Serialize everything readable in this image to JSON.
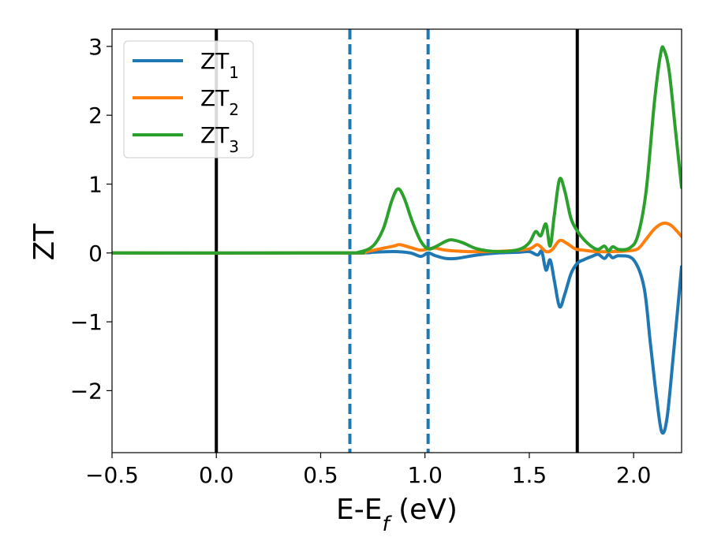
{
  "chart_data": {
    "type": "line",
    "xlabel": {
      "main": "E-E",
      "sub": "f",
      "tail": " (eV)"
    },
    "ylabel": "ZT",
    "xlim": [
      -0.5,
      2.23
    ],
    "ylim": [
      -2.9,
      3.25
    ],
    "xticks": [
      -0.5,
      0.0,
      0.5,
      1.0,
      1.5,
      2.0
    ],
    "xtick_labels": [
      "−0.5",
      "0.0",
      "0.5",
      "1.0",
      "1.5",
      "2.0"
    ],
    "yticks": [
      -2,
      -1,
      0,
      1,
      2,
      3
    ],
    "ytick_labels": [
      "−2",
      "−1",
      "0",
      "1",
      "2",
      "3"
    ],
    "grid": false,
    "legend_position": "top-left",
    "vlines": [
      {
        "x": 0.0,
        "color": "#000000",
        "style": "solid"
      },
      {
        "x": 0.64,
        "color": "#1f77b4",
        "style": "dashed"
      },
      {
        "x": 1.015,
        "color": "#1f77b4",
        "style": "dashed"
      },
      {
        "x": 1.73,
        "color": "#000000",
        "style": "solid"
      }
    ],
    "series": [
      {
        "name": "ZT",
        "sub": "1",
        "color": "#1f77b4",
        "points": [
          [
            -0.5,
            0
          ],
          [
            0.6,
            0
          ],
          [
            0.75,
            0.01
          ],
          [
            0.85,
            0.02
          ],
          [
            0.93,
            0.0
          ],
          [
            0.98,
            -0.05
          ],
          [
            1.015,
            0.0
          ],
          [
            1.05,
            -0.04
          ],
          [
            1.1,
            -0.08
          ],
          [
            1.15,
            -0.08
          ],
          [
            1.25,
            -0.03
          ],
          [
            1.35,
            0.0
          ],
          [
            1.45,
            0.01
          ],
          [
            1.5,
            0.02
          ],
          [
            1.54,
            -0.03
          ],
          [
            1.56,
            0.02
          ],
          [
            1.58,
            -0.25
          ],
          [
            1.6,
            -0.1
          ],
          [
            1.62,
            -0.4
          ],
          [
            1.645,
            -0.78
          ],
          [
            1.67,
            -0.6
          ],
          [
            1.7,
            -0.3
          ],
          [
            1.73,
            -0.15
          ],
          [
            1.76,
            -0.1
          ],
          [
            1.8,
            -0.05
          ],
          [
            1.83,
            -0.02
          ],
          [
            1.86,
            -0.08
          ],
          [
            1.88,
            -0.02
          ],
          [
            1.9,
            -0.07
          ],
          [
            1.93,
            -0.04
          ],
          [
            2.0,
            -0.1
          ],
          [
            2.05,
            -0.5
          ],
          [
            2.08,
            -1.3
          ],
          [
            2.11,
            -2.1
          ],
          [
            2.135,
            -2.6
          ],
          [
            2.16,
            -2.4
          ],
          [
            2.19,
            -1.5
          ],
          [
            2.23,
            -0.2
          ]
        ]
      },
      {
        "name": "ZT",
        "sub": "2",
        "color": "#ff7f0e",
        "points": [
          [
            -0.5,
            0
          ],
          [
            0.6,
            0
          ],
          [
            0.7,
            0.01
          ],
          [
            0.8,
            0.07
          ],
          [
            0.85,
            0.1
          ],
          [
            0.88,
            0.12
          ],
          [
            0.93,
            0.08
          ],
          [
            0.98,
            0.04
          ],
          [
            1.015,
            0.06
          ],
          [
            1.05,
            0.07
          ],
          [
            1.1,
            0.04
          ],
          [
            1.2,
            0.02
          ],
          [
            1.3,
            0.02
          ],
          [
            1.4,
            0.03
          ],
          [
            1.5,
            0.06
          ],
          [
            1.54,
            0.12
          ],
          [
            1.58,
            0.02
          ],
          [
            1.61,
            0.05
          ],
          [
            1.645,
            0.18
          ],
          [
            1.68,
            0.14
          ],
          [
            1.72,
            0.06
          ],
          [
            1.76,
            0.04
          ],
          [
            1.82,
            0.02
          ],
          [
            1.9,
            0.02
          ],
          [
            1.97,
            0.03
          ],
          [
            2.02,
            0.06
          ],
          [
            2.06,
            0.2
          ],
          [
            2.1,
            0.35
          ],
          [
            2.14,
            0.43
          ],
          [
            2.18,
            0.4
          ],
          [
            2.23,
            0.24
          ]
        ]
      },
      {
        "name": "ZT",
        "sub": "3",
        "color": "#2ca02c",
        "points": [
          [
            -0.5,
            0
          ],
          [
            0.6,
            0
          ],
          [
            0.68,
            0.01
          ],
          [
            0.75,
            0.1
          ],
          [
            0.8,
            0.35
          ],
          [
            0.84,
            0.75
          ],
          [
            0.87,
            0.93
          ],
          [
            0.9,
            0.8
          ],
          [
            0.94,
            0.45
          ],
          [
            0.98,
            0.17
          ],
          [
            1.015,
            0.06
          ],
          [
            1.05,
            0.09
          ],
          [
            1.1,
            0.17
          ],
          [
            1.13,
            0.19
          ],
          [
            1.18,
            0.15
          ],
          [
            1.25,
            0.06
          ],
          [
            1.35,
            0.02
          ],
          [
            1.45,
            0.05
          ],
          [
            1.5,
            0.15
          ],
          [
            1.53,
            0.31
          ],
          [
            1.555,
            0.25
          ],
          [
            1.58,
            0.42
          ],
          [
            1.6,
            0.1
          ],
          [
            1.62,
            0.55
          ],
          [
            1.645,
            1.07
          ],
          [
            1.67,
            0.9
          ],
          [
            1.7,
            0.5
          ],
          [
            1.73,
            0.32
          ],
          [
            1.76,
            0.2
          ],
          [
            1.8,
            0.09
          ],
          [
            1.83,
            0.05
          ],
          [
            1.86,
            0.1
          ],
          [
            1.88,
            0.03
          ],
          [
            1.9,
            0.09
          ],
          [
            1.93,
            0.05
          ],
          [
            1.98,
            0.07
          ],
          [
            2.02,
            0.25
          ],
          [
            2.06,
            0.9
          ],
          [
            2.1,
            2.2
          ],
          [
            2.13,
            2.9
          ],
          [
            2.145,
            2.96
          ],
          [
            2.17,
            2.65
          ],
          [
            2.2,
            1.8
          ],
          [
            2.23,
            0.95
          ]
        ]
      }
    ]
  }
}
